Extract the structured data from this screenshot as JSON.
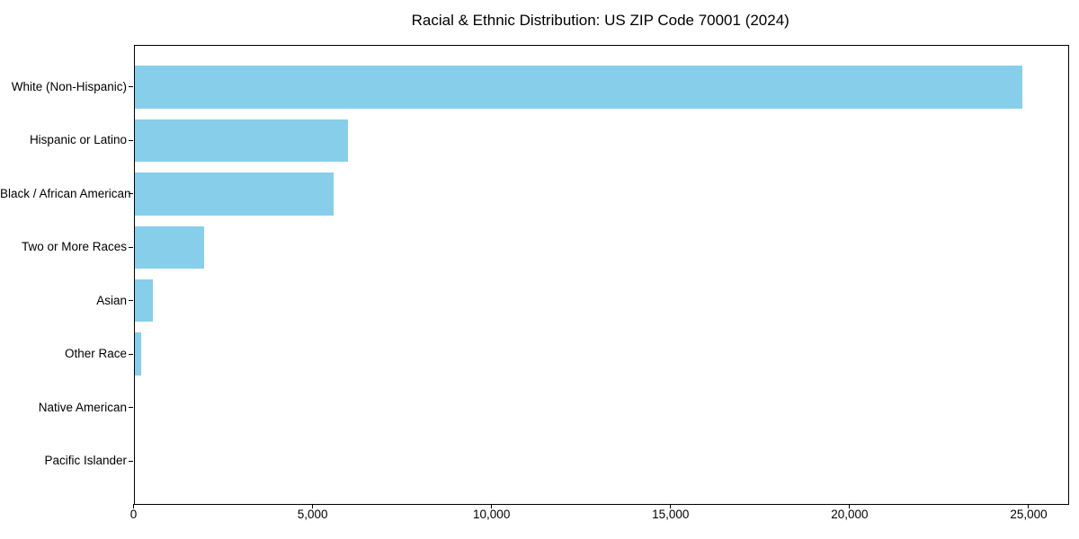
{
  "page": {
    "background": "#ffffff"
  },
  "chart_data": {
    "type": "bar",
    "orientation": "horizontal",
    "title": "Racial & Ethnic Distribution: US ZIP Code 70001 (2024)",
    "categories": [
      "White (Non-Hispanic)",
      "Hispanic or Latino",
      "Black / African American",
      "Two or More Races",
      "Asian",
      "Other Race",
      "Native American",
      "Pacific Islander"
    ],
    "values": [
      24800,
      5970,
      5570,
      1950,
      520,
      200,
      0,
      0
    ],
    "xlabel": "",
    "ylabel": "",
    "xlim": [
      0,
      26080
    ],
    "x_ticks": [
      0,
      5000,
      10000,
      15000,
      20000,
      25000
    ],
    "x_tick_labels": [
      "0",
      "5,000",
      "10,000",
      "15,000",
      "20,000",
      "25,000"
    ],
    "grid": false,
    "legend": "none",
    "bar_color": "#87CEEB",
    "axis_color": "#000000",
    "text_color": "#000000"
  }
}
